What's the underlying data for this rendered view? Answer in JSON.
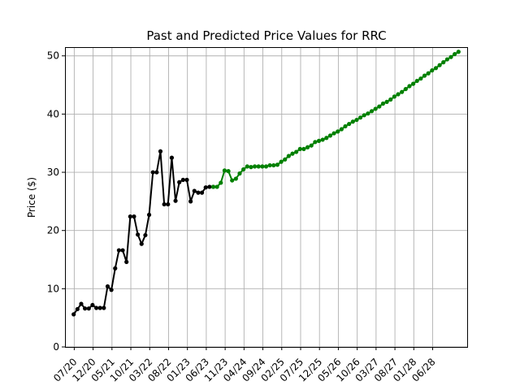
{
  "chart_data": {
    "type": "line",
    "title": "Past and Predicted Price Values for RRC",
    "xlabel": "",
    "ylabel": "Price ($)",
    "ylim": [
      0,
      51.5
    ],
    "y_ticks": [
      0,
      10,
      20,
      30,
      40,
      50
    ],
    "x_tick_labels": [
      "07/20",
      "12/20",
      "05/21",
      "10/21",
      "03/22",
      "08/22",
      "01/23",
      "06/23",
      "11/23",
      "04/24",
      "09/24",
      "02/25",
      "07/25",
      "12/25",
      "05/26",
      "10/26",
      "03/27",
      "08/27",
      "01/28",
      "06/28"
    ],
    "grid": true,
    "series": [
      {
        "color": "#000000",
        "x": [
          0,
          1,
          2,
          3,
          4,
          5,
          6,
          7,
          8,
          9,
          10,
          11,
          12,
          13,
          14,
          15,
          16,
          17,
          18,
          19,
          20,
          21,
          22,
          23,
          24,
          25,
          26,
          27,
          28,
          29,
          30,
          31,
          32,
          33,
          34,
          35,
          36,
          37
        ],
        "values": [
          5.6,
          6.5,
          7.4,
          6.6,
          6.6,
          7.2,
          6.7,
          6.7,
          6.7,
          10.4,
          9.8,
          13.5,
          16.6,
          16.6,
          14.6,
          22.4,
          22.4,
          19.3,
          17.7,
          19.2,
          22.7,
          30.0,
          30.0,
          33.6,
          24.5,
          24.5,
          32.5,
          25.1,
          28.3,
          28.7,
          28.7,
          25.0,
          26.8,
          26.5,
          26.5,
          27.4,
          27.5,
          27.5
        ]
      },
      {
        "color": "#008000",
        "x": [
          37,
          38,
          39,
          40,
          41,
          42,
          43,
          44,
          45,
          46,
          47,
          48,
          49,
          50,
          51,
          52,
          53,
          54,
          55,
          56,
          57,
          58,
          59,
          60,
          61,
          62,
          63,
          64,
          65,
          66,
          67,
          68,
          69,
          70,
          71,
          72,
          73,
          74,
          75,
          76,
          77,
          78,
          79,
          80,
          81,
          82,
          83,
          84,
          85,
          86,
          87,
          88,
          89,
          90,
          91,
          92,
          93,
          94,
          95,
          96,
          97,
          98,
          99,
          100,
          101,
          102
        ],
        "values": [
          27.5,
          27.5,
          28.2,
          30.3,
          30.2,
          28.6,
          28.9,
          29.8,
          30.5,
          31.0,
          30.9,
          31.0,
          31.0,
          31.0,
          31.0,
          31.2,
          31.2,
          31.3,
          31.8,
          32.2,
          32.8,
          33.2,
          33.5,
          34.0,
          34.0,
          34.3,
          34.6,
          35.2,
          35.4,
          35.6,
          35.9,
          36.3,
          36.7,
          37.0,
          37.4,
          37.9,
          38.3,
          38.7,
          39.0,
          39.4,
          39.8,
          40.1,
          40.5,
          40.9,
          41.3,
          41.8,
          42.1,
          42.5,
          43.0,
          43.4,
          43.8,
          44.3,
          44.8,
          45.2,
          45.7,
          46.1,
          46.6,
          47.0,
          47.5,
          47.9,
          48.4,
          48.9,
          49.4,
          49.8,
          50.3,
          50.7
        ]
      }
    ]
  }
}
